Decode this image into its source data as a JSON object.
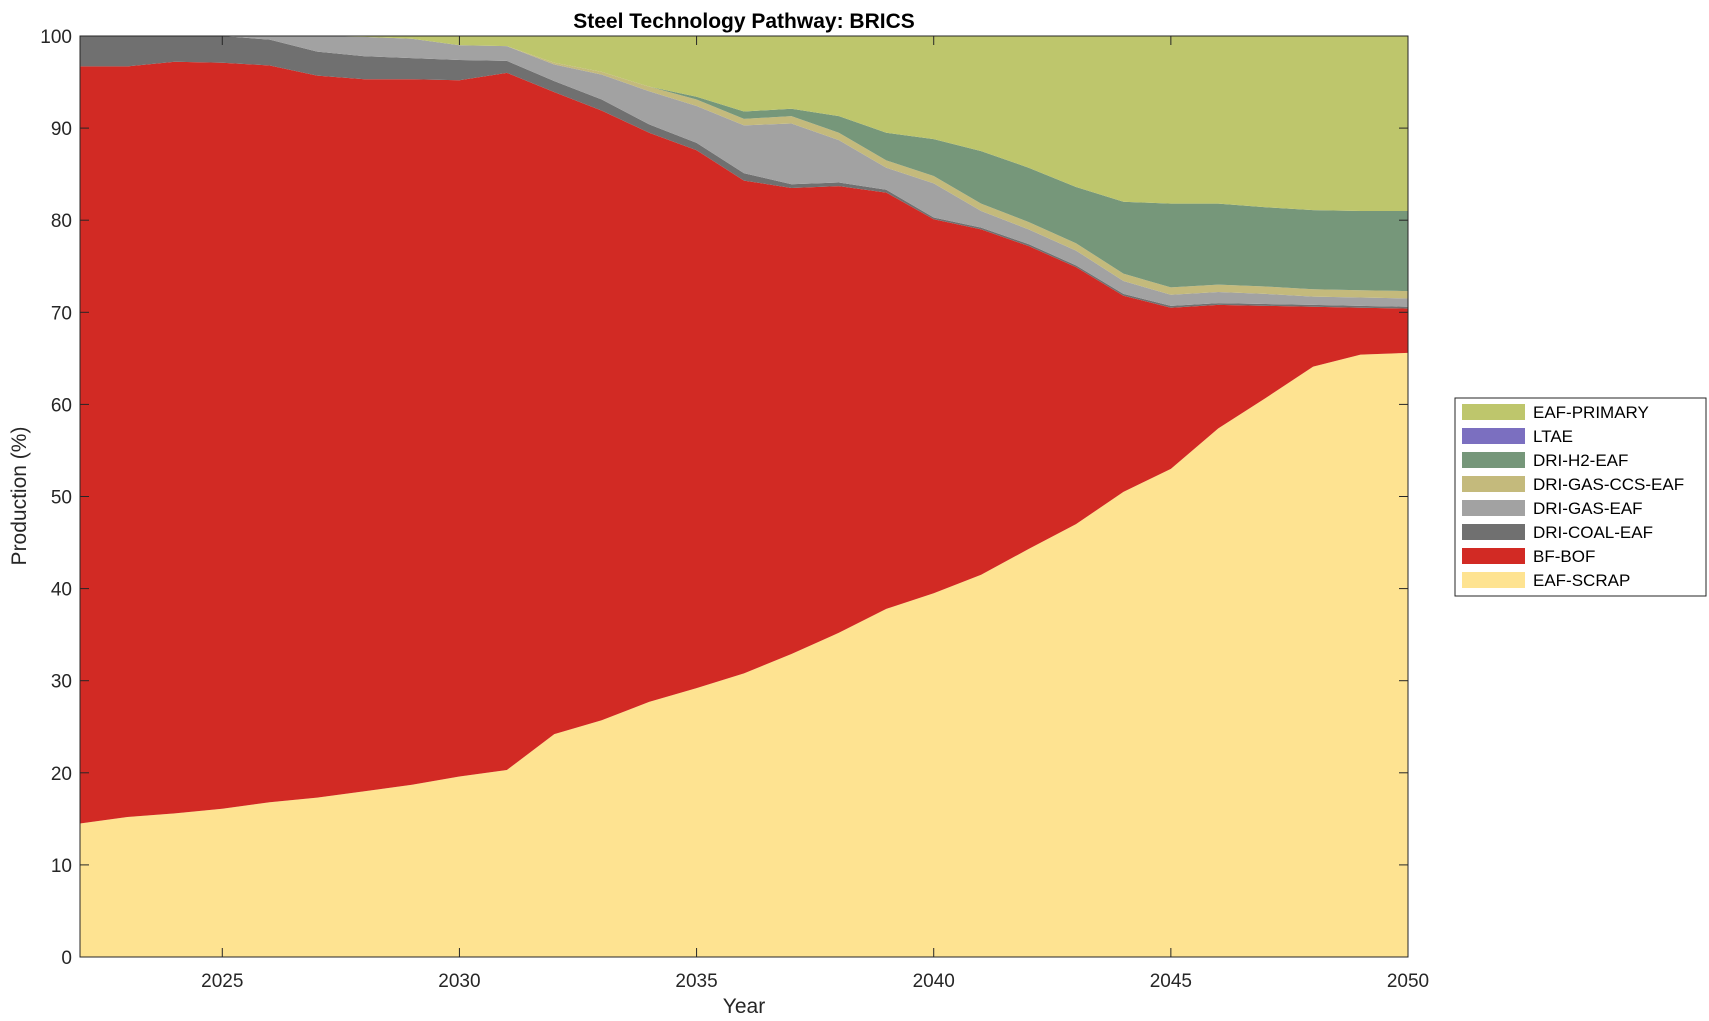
{
  "chart_data": {
    "type": "area",
    "title": "Steel Technology Pathway: BRICS",
    "xlabel": "Year",
    "ylabel": "Production (%)",
    "xlim": [
      2022,
      2050
    ],
    "ylim": [
      0,
      100
    ],
    "xticks": [
      2025,
      2030,
      2035,
      2040,
      2045,
      2050
    ],
    "yticks": [
      0,
      10,
      20,
      30,
      40,
      50,
      60,
      70,
      80,
      90,
      100
    ],
    "grid": false,
    "legend_position": "right",
    "x": [
      2022,
      2023,
      2024,
      2025,
      2026,
      2027,
      2028,
      2029,
      2030,
      2031,
      2032,
      2033,
      2034,
      2035,
      2036,
      2037,
      2038,
      2039,
      2040,
      2041,
      2042,
      2043,
      2044,
      2045,
      2046,
      2047,
      2048,
      2049,
      2050
    ],
    "series": [
      {
        "name": "EAF-SCRAP",
        "color": "#fee391",
        "values": [
          14.5,
          15.2,
          15.6,
          16.1,
          16.8,
          17.3,
          18.0,
          18.7,
          19.6,
          20.3,
          24.2,
          25.7,
          27.7,
          29.2,
          30.8,
          32.9,
          35.2,
          37.8,
          39.5,
          41.5,
          44.3,
          47.0,
          50.5,
          53.0,
          57.4,
          60.7,
          64.1,
          65.4,
          65.6
        ]
      },
      {
        "name": "BF-BOF",
        "color": "#d22a24",
        "values": [
          82.2,
          81.5,
          81.6,
          81.0,
          80.0,
          78.4,
          77.3,
          76.6,
          75.6,
          75.7,
          69.7,
          66.2,
          61.8,
          58.4,
          53.5,
          50.6,
          48.5,
          45.2,
          40.6,
          37.5,
          32.9,
          27.9,
          21.3,
          17.5,
          13.4,
          10.0,
          6.5,
          5.1,
          4.8
        ]
      },
      {
        "name": "DRI-COAL-EAF",
        "color": "#707070",
        "values": [
          3.3,
          3.3,
          2.8,
          2.9,
          2.8,
          2.6,
          2.5,
          2.3,
          2.2,
          1.3,
          1.2,
          1.2,
          0.9,
          0.8,
          0.8,
          0.4,
          0.4,
          0.3,
          0.2,
          0.2,
          0.2,
          0.2,
          0.2,
          0.2,
          0.2,
          0.2,
          0.2,
          0.2,
          0.2
        ]
      },
      {
        "name": "DRI-GAS-EAF",
        "color": "#a2a2a2",
        "values": [
          0.0,
          0.0,
          0.0,
          0.0,
          0.4,
          1.7,
          2.1,
          2.1,
          1.6,
          1.6,
          1.8,
          2.7,
          3.6,
          4.0,
          5.2,
          6.6,
          4.6,
          2.4,
          3.7,
          1.8,
          1.6,
          1.6,
          1.4,
          1.2,
          1.2,
          1.1,
          0.9,
          0.9,
          0.9
        ]
      },
      {
        "name": "DRI-GAS-CCS-EAF",
        "color": "#c4ba7c",
        "values": [
          0.0,
          0.0,
          0.0,
          0.0,
          0.0,
          0.0,
          0.0,
          0.0,
          0.0,
          0.0,
          0.2,
          0.3,
          0.5,
          0.7,
          0.7,
          0.8,
          0.8,
          0.8,
          0.8,
          0.8,
          0.8,
          0.8,
          0.8,
          0.8,
          0.8,
          0.8,
          0.8,
          0.8,
          0.8
        ]
      },
      {
        "name": "DRI-H2-EAF",
        "color": "#76977a",
        "values": [
          0.0,
          0.0,
          0.0,
          0.0,
          0.0,
          0.0,
          0.0,
          0.0,
          0.0,
          0.0,
          0.0,
          0.0,
          0.0,
          0.3,
          0.8,
          0.8,
          1.8,
          3.0,
          4.0,
          5.7,
          5.9,
          6.1,
          7.8,
          9.1,
          8.8,
          8.6,
          8.6,
          8.6,
          8.7
        ]
      },
      {
        "name": "LTAE",
        "color": "#7b6fc0",
        "values": [
          0,
          0,
          0,
          0,
          0,
          0,
          0,
          0,
          0,
          0,
          0,
          0,
          0,
          0,
          0,
          0,
          0,
          0,
          0,
          0,
          0,
          0,
          0,
          0,
          0,
          0,
          0,
          0,
          0
        ]
      },
      {
        "name": "EAF-PRIMARY",
        "color": "#bec66c",
        "values": [
          0.0,
          0.0,
          0.0,
          0.0,
          0.0,
          0.0,
          0.1,
          0.3,
          1.0,
          1.1,
          2.9,
          3.9,
          5.5,
          6.6,
          8.2,
          8.4,
          8.7,
          10.5,
          11.2,
          12.5,
          14.3,
          16.4,
          18.0,
          18.2,
          18.6,
          18.8,
          19.1,
          19.0,
          19.0
        ]
      }
    ],
    "legend_order": [
      "EAF-PRIMARY",
      "LTAE",
      "DRI-H2-EAF",
      "DRI-GAS-CCS-EAF",
      "DRI-GAS-EAF",
      "DRI-COAL-EAF",
      "BF-BOF",
      "EAF-SCRAP"
    ]
  }
}
